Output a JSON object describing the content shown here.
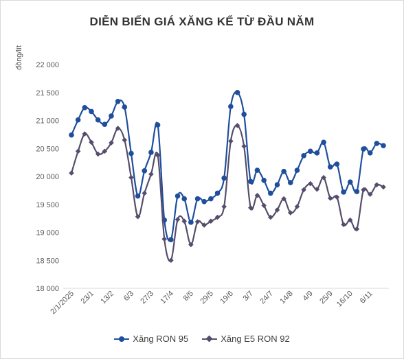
{
  "chart_data": {
    "type": "line",
    "title": "DIỄN BIẾN GIÁ XĂNG KỂ TỪ ĐẦU NĂM",
    "ylabel": "đồng/lít",
    "xlabel": "",
    "ylim": [
      18000,
      22000
    ],
    "y_ticks": [
      18000,
      18500,
      19000,
      19500,
      20000,
      20500,
      21000,
      21500,
      22000
    ],
    "y_tick_labels": [
      "18 000",
      "18 500",
      "19 000",
      "19 500",
      "20 000",
      "20 500",
      "21 000",
      "21 500",
      "22 000"
    ],
    "x_tick_labels": [
      "2/1/2025",
      "23/1",
      "13/2",
      "6/3",
      "27/3",
      "17/4",
      "8/5",
      "29/5",
      "19/6",
      "3/7",
      "24/7",
      "14/8",
      "4/9",
      "25/9",
      "16/10",
      "6/11"
    ],
    "x_tick_index_step": 3,
    "grid": false,
    "legend_position": "bottom",
    "series": [
      {
        "name": "Xăng RON 95",
        "color": "#1f4e9c",
        "marker": "circle",
        "values": [
          20740,
          21010,
          21230,
          21160,
          21010,
          20930,
          21080,
          21340,
          21240,
          20410,
          19650,
          20100,
          20430,
          20920,
          19220,
          18870,
          19650,
          19600,
          19180,
          19600,
          19550,
          19600,
          19700,
          19970,
          21250,
          21500,
          21110,
          19910,
          20110,
          19930,
          19700,
          19850,
          20090,
          19890,
          20110,
          20370,
          20450,
          20420,
          20610,
          20170,
          20220,
          19720,
          19900,
          19730,
          20490,
          20420,
          20590,
          20550
        ]
      },
      {
        "name": "Xăng E5 RON 92",
        "color": "#554d6b",
        "marker": "diamond",
        "values": [
          20060,
          20450,
          20760,
          20610,
          20400,
          20450,
          20600,
          20860,
          20650,
          19980,
          19280,
          19700,
          20040,
          20380,
          18880,
          18500,
          19230,
          19200,
          18780,
          19190,
          19130,
          19200,
          19270,
          19460,
          20630,
          20910,
          20540,
          19440,
          19660,
          19480,
          19270,
          19400,
          19600,
          19350,
          19460,
          19760,
          19870,
          19770,
          19980,
          19610,
          19630,
          19140,
          19220,
          19060,
          19760,
          19680,
          19850,
          19810
        ]
      }
    ]
  }
}
